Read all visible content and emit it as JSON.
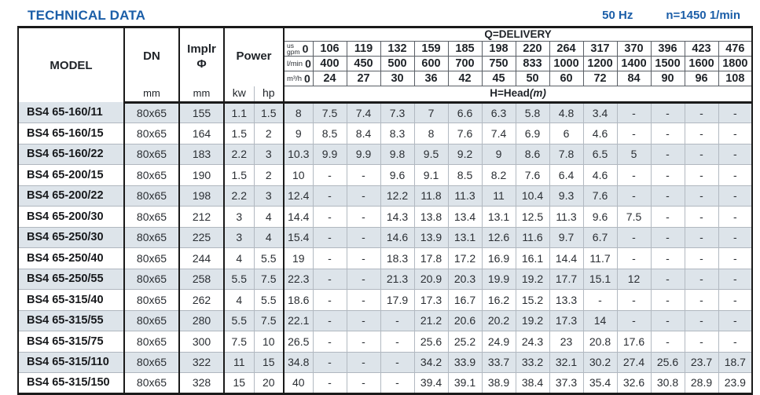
{
  "header": {
    "title": "TECHNICAL DATA",
    "frequency": "50 Hz",
    "speed": "n=1450 1/min"
  },
  "table": {
    "columns": {
      "model_label": "MODEL",
      "dn_label": "DN",
      "dn_unit": "mm",
      "implr_label": "Implr",
      "implr_symbol": "Φ",
      "implr_unit": "mm",
      "power_label": "Power",
      "kw_label": "kw",
      "hp_label": "hp"
    },
    "delivery": {
      "title": "Q=DELIVERY",
      "head_label": "H=Head",
      "head_unit": "(m)",
      "unit_rows": [
        {
          "key": "us-gpm",
          "label_lines": [
            "us",
            "gpm"
          ],
          "values": [
            "0",
            "106",
            "119",
            "132",
            "159",
            "185",
            "198",
            "220",
            "264",
            "317",
            "370",
            "396",
            "423",
            "476"
          ]
        },
        {
          "key": "l-min",
          "label_lines": [
            "l/min"
          ],
          "values": [
            "0",
            "400",
            "450",
            "500",
            "600",
            "700",
            "750",
            "833",
            "1000",
            "1200",
            "1400",
            "1500",
            "1600",
            "1800"
          ]
        },
        {
          "key": "m3-h",
          "label_lines": [
            "m³/h"
          ],
          "values": [
            "0",
            "24",
            "27",
            "30",
            "36",
            "42",
            "45",
            "50",
            "60",
            "72",
            "84",
            "90",
            "96",
            "108"
          ]
        }
      ]
    },
    "rows": [
      {
        "model": "BS4 65-160/11",
        "dn": "80x65",
        "implr": "155",
        "kw": "1.1",
        "hp": "1.5",
        "heads": [
          "8",
          "7.5",
          "7.4",
          "7.3",
          "7",
          "6.6",
          "6.3",
          "5.8",
          "4.8",
          "3.4",
          "-",
          "-",
          "-",
          "-"
        ]
      },
      {
        "model": "BS4 65-160/15",
        "dn": "80x65",
        "implr": "164",
        "kw": "1.5",
        "hp": "2",
        "heads": [
          "9",
          "8.5",
          "8.4",
          "8.3",
          "8",
          "7.6",
          "7.4",
          "6.9",
          "6",
          "4.6",
          "-",
          "-",
          "-",
          "-"
        ]
      },
      {
        "model": "BS4 65-160/22",
        "dn": "80x65",
        "implr": "183",
        "kw": "2.2",
        "hp": "3",
        "heads": [
          "10.3",
          "9.9",
          "9.9",
          "9.8",
          "9.5",
          "9.2",
          "9",
          "8.6",
          "7.8",
          "6.5",
          "5",
          "-",
          "-",
          "-"
        ]
      },
      {
        "model": "BS4 65-200/15",
        "dn": "80x65",
        "implr": "190",
        "kw": "1.5",
        "hp": "2",
        "heads": [
          "10",
          "-",
          "-",
          "9.6",
          "9.1",
          "8.5",
          "8.2",
          "7.6",
          "6.4",
          "4.6",
          "-",
          "-",
          "-",
          "-"
        ]
      },
      {
        "model": "BS4 65-200/22",
        "dn": "80x65",
        "implr": "198",
        "kw": "2.2",
        "hp": "3",
        "heads": [
          "12.4",
          "-",
          "-",
          "12.2",
          "11.8",
          "11.3",
          "11",
          "10.4",
          "9.3",
          "7.6",
          "-",
          "-",
          "-",
          "-"
        ]
      },
      {
        "model": "BS4 65-200/30",
        "dn": "80x65",
        "implr": "212",
        "kw": "3",
        "hp": "4",
        "heads": [
          "14.4",
          "-",
          "-",
          "14.3",
          "13.8",
          "13.4",
          "13.1",
          "12.5",
          "11.3",
          "9.6",
          "7.5",
          "-",
          "-",
          "-"
        ]
      },
      {
        "model": "BS4 65-250/30",
        "dn": "80x65",
        "implr": "225",
        "kw": "3",
        "hp": "4",
        "heads": [
          "15.4",
          "-",
          "-",
          "14.6",
          "13.9",
          "13.1",
          "12.6",
          "11.6",
          "9.7",
          "6.7",
          "-",
          "-",
          "-",
          "-"
        ]
      },
      {
        "model": "BS4 65-250/40",
        "dn": "80x65",
        "implr": "244",
        "kw": "4",
        "hp": "5.5",
        "heads": [
          "19",
          "-",
          "-",
          "18.3",
          "17.8",
          "17.2",
          "16.9",
          "16.1",
          "14.4",
          "11.7",
          "-",
          "-",
          "-",
          "-"
        ]
      },
      {
        "model": "BS4 65-250/55",
        "dn": "80x65",
        "implr": "258",
        "kw": "5.5",
        "hp": "7.5",
        "heads": [
          "22.3",
          "-",
          "-",
          "21.3",
          "20.9",
          "20.3",
          "19.9",
          "19.2",
          "17.7",
          "15.1",
          "12",
          "-",
          "-",
          "-"
        ]
      },
      {
        "model": "BS4 65-315/40",
        "dn": "80x65",
        "implr": "262",
        "kw": "4",
        "hp": "5.5",
        "heads": [
          "18.6",
          "-",
          "-",
          "17.9",
          "17.3",
          "16.7",
          "16.2",
          "15.2",
          "13.3",
          "-",
          "-",
          "-",
          "-",
          "-"
        ]
      },
      {
        "model": "BS4 65-315/55",
        "dn": "80x65",
        "implr": "280",
        "kw": "5.5",
        "hp": "7.5",
        "heads": [
          "22.1",
          "-",
          "-",
          "-",
          "21.2",
          "20.6",
          "20.2",
          "19.2",
          "17.3",
          "14",
          "-",
          "-",
          "-",
          "-"
        ]
      },
      {
        "model": "BS4 65-315/75",
        "dn": "80x65",
        "implr": "300",
        "kw": "7.5",
        "hp": "10",
        "heads": [
          "26.5",
          "-",
          "-",
          "-",
          "25.6",
          "25.2",
          "24.9",
          "24.3",
          "23",
          "20.8",
          "17.6",
          "-",
          "-",
          "-"
        ]
      },
      {
        "model": "BS4 65-315/110",
        "dn": "80x65",
        "implr": "322",
        "kw": "11",
        "hp": "15",
        "heads": [
          "34.8",
          "-",
          "-",
          "-",
          "34.2",
          "33.9",
          "33.7",
          "33.2",
          "32.1",
          "30.2",
          "27.4",
          "25.6",
          "23.7",
          "18.7"
        ]
      },
      {
        "model": "BS4 65-315/150",
        "dn": "80x65",
        "implr": "328",
        "kw": "15",
        "hp": "20",
        "heads": [
          "40",
          "-",
          "-",
          "-",
          "39.4",
          "39.1",
          "38.9",
          "38.4",
          "37.3",
          "35.4",
          "32.6",
          "30.8",
          "28.9",
          "23.9"
        ]
      }
    ]
  },
  "colors": {
    "accent_blue": "#1b5ea8",
    "row_stripe": "#dde4ea",
    "thick_border": "#1a1a1a"
  }
}
